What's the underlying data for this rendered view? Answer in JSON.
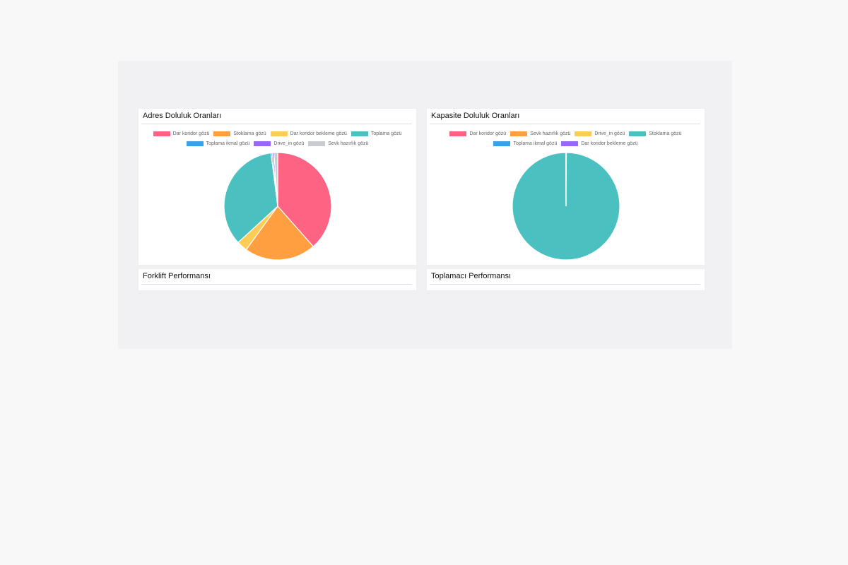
{
  "panels": {
    "adres": {
      "title": "Adres Doluluk Oranları"
    },
    "kapasite": {
      "title": "Kapasite Doluluk Oranları"
    },
    "forklift": {
      "title": "Forklift Performansı"
    },
    "toplamaci": {
      "title": "Toplamacı Performansı"
    }
  },
  "chart_data": [
    {
      "type": "pie",
      "title": "Adres Doluluk Oranları",
      "legend_position": "top",
      "categories": [
        "Dar koridor gözü",
        "Stoklama gözü",
        "Dar koridor bekleme gözü",
        "Toplama gözü",
        "Toplama ikmal gözü",
        "Drive_in gözü",
        "Sevk hazırlık gözü"
      ],
      "values": [
        38.5,
        21.5,
        3.2,
        34.8,
        0.4,
        0.5,
        1.1
      ],
      "colors": [
        "#ff6384",
        "#ff9f40",
        "#ffcd56",
        "#4bc0c0",
        "#36a2eb",
        "#9966ff",
        "#c9cbcf"
      ]
    },
    {
      "type": "pie",
      "title": "Kapasite Doluluk Oranları",
      "legend_position": "top",
      "categories": [
        "Dar koridor gözü",
        "Sevk hazırlık gözü",
        "Drive_in gözü",
        "Stoklama gözü",
        "Toplama ikmal gözü",
        "Dar koridor bekleme gözü"
      ],
      "values": [
        0.05,
        0.03,
        0.03,
        99.8,
        0.05,
        0.04
      ],
      "colors": [
        "#ff6384",
        "#ff9f40",
        "#ffcd56",
        "#4bc0c0",
        "#36a2eb",
        "#9966ff"
      ]
    }
  ]
}
